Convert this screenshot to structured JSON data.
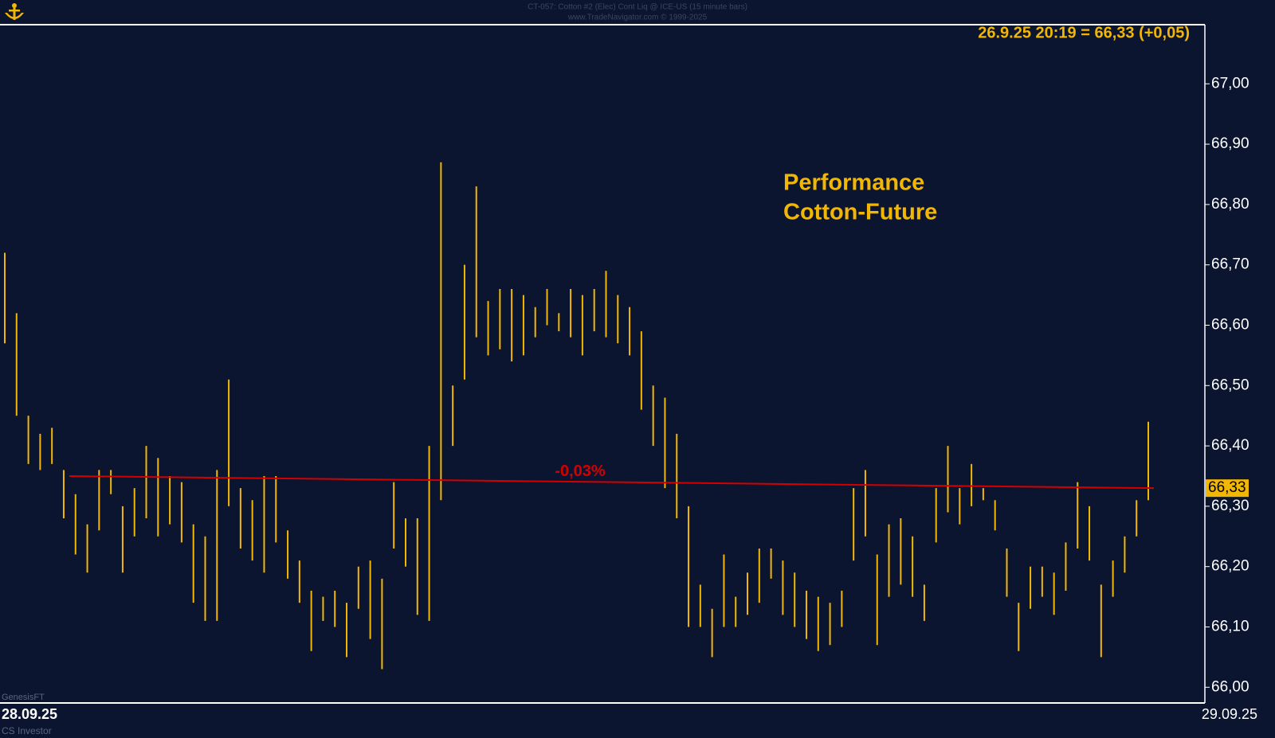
{
  "header": {
    "title": "CT-057:  Cotton #2 (Elec) Cont Liq @ ICE-US  (15 minute bars)",
    "subtitle": "www.TradeNavigator.com © 1999-2025"
  },
  "chart_data": {
    "type": "range-bar",
    "quote": "26.9.25 20:19 = 66,33 (+0,05)",
    "annotations": [
      "Performance",
      "Cotton-Future"
    ],
    "x_labels": [
      "28.09.25",
      "29.09.25"
    ],
    "color": "#f2b705",
    "high": [
      66.72,
      66.62,
      66.45,
      66.42,
      66.43,
      66.36,
      66.32,
      66.27,
      66.36,
      66.36,
      66.3,
      66.33,
      66.4,
      66.38,
      66.35,
      66.34,
      66.27,
      66.25,
      66.36,
      66.51,
      66.33,
      66.31,
      66.35,
      66.35,
      66.26,
      66.21,
      66.16,
      66.15,
      66.16,
      66.14,
      66.2,
      66.21,
      66.18,
      66.34,
      66.28,
      66.28,
      66.4,
      66.87,
      66.5,
      66.7,
      66.83,
      66.64,
      66.66,
      66.66,
      66.65,
      66.63,
      66.66,
      66.62,
      66.66,
      66.65,
      66.66,
      66.69,
      66.65,
      66.63,
      66.59,
      66.5,
      66.48,
      66.42,
      66.3,
      66.17,
      66.13,
      66.22,
      66.15,
      66.19,
      66.23,
      66.23,
      66.21,
      66.19,
      66.16,
      66.15,
      66.14,
      66.16,
      66.33,
      66.36,
      66.22,
      66.27,
      66.28,
      66.25,
      66.17,
      66.33,
      66.4,
      66.33,
      66.37,
      66.33,
      66.31,
      66.23,
      66.14,
      66.2,
      66.2,
      66.19,
      66.24,
      66.34,
      66.3,
      66.17,
      66.21,
      66.25,
      66.31,
      66.44
    ],
    "low": [
      66.57,
      66.45,
      66.37,
      66.36,
      66.37,
      66.28,
      66.22,
      66.19,
      66.26,
      66.32,
      66.19,
      66.25,
      66.28,
      66.25,
      66.27,
      66.24,
      66.14,
      66.11,
      66.11,
      66.3,
      66.23,
      66.21,
      66.19,
      66.24,
      66.18,
      66.14,
      66.06,
      66.11,
      66.1,
      66.05,
      66.13,
      66.08,
      66.03,
      66.23,
      66.2,
      66.12,
      66.11,
      66.31,
      66.4,
      66.51,
      66.58,
      66.55,
      66.56,
      66.54,
      66.55,
      66.58,
      66.6,
      66.59,
      66.58,
      66.55,
      66.59,
      66.58,
      66.57,
      66.55,
      66.46,
      66.4,
      66.33,
      66.28,
      66.1,
      66.1,
      66.05,
      66.1,
      66.1,
      66.12,
      66.14,
      66.18,
      66.12,
      66.1,
      66.08,
      66.06,
      66.07,
      66.1,
      66.21,
      66.25,
      66.07,
      66.15,
      66.17,
      66.15,
      66.11,
      66.24,
      66.29,
      66.27,
      66.3,
      66.31,
      66.26,
      66.15,
      66.06,
      66.13,
      66.15,
      66.12,
      66.16,
      66.23,
      66.21,
      66.05,
      66.15,
      66.19,
      66.25,
      66.31
    ],
    "reference_line": {
      "values": [
        66.35,
        66.33
      ],
      "label": "-0,03%",
      "color": "#d40000"
    },
    "last_price": {
      "value": 66.33,
      "label": "66,33"
    },
    "ylim": [
      65.974,
      67.098
    ],
    "yticks": [
      {
        "value": 66.0,
        "label": "66,00"
      },
      {
        "value": 66.1,
        "label": "66,10"
      },
      {
        "value": 66.2,
        "label": "66,20"
      },
      {
        "value": 66.3,
        "label": "66,30"
      },
      {
        "value": 66.4,
        "label": "66,40"
      },
      {
        "value": 66.5,
        "label": "66,50"
      },
      {
        "value": 66.6,
        "label": "66,60"
      },
      {
        "value": 66.7,
        "label": "66,70"
      },
      {
        "value": 66.8,
        "label": "66,80"
      },
      {
        "value": 66.9,
        "label": "66,90"
      },
      {
        "value": 67.0,
        "label": "67,00"
      }
    ]
  },
  "footer": {
    "source": "GenesisFT",
    "brand": "CS Investor"
  }
}
